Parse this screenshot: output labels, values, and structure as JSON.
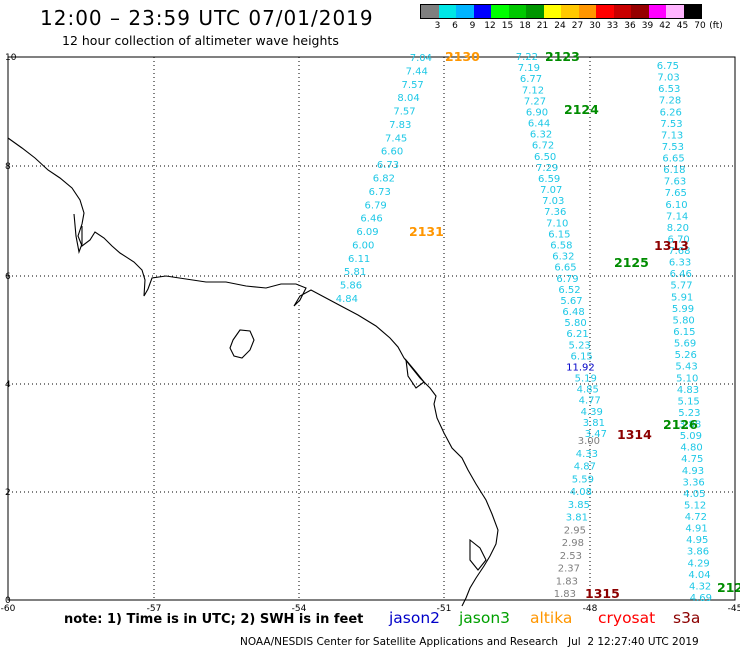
{
  "header": {
    "title": "12:00 – 23:59 UTC 07/01/2019",
    "subtitle": "12 hour collection of altimeter wave heights"
  },
  "scale": {
    "unit": "(ft)",
    "labels": [
      "3",
      "6",
      "9",
      "12",
      "15",
      "18",
      "21",
      "24",
      "27",
      "30",
      "33",
      "36",
      "39",
      "42",
      "45",
      "70"
    ],
    "colors": [
      "#7f7f7f",
      "#00e6e6",
      "#00b4ff",
      "#0000ff",
      "#00ff00",
      "#00c800",
      "#009600",
      "#ffff00",
      "#ffc800",
      "#ff9600",
      "#ff0000",
      "#c80000",
      "#960000",
      "#ff00ff",
      "#ffb4ff",
      "#000000"
    ]
  },
  "axes": {
    "lon_labels": [
      "-60",
      "-57",
      "-54",
      "-51",
      "-48",
      "-45"
    ],
    "lat_labels": [
      "10",
      "8",
      "6",
      "4",
      "2",
      "0"
    ]
  },
  "colors": {
    "cyan": "#1ec8e6",
    "gray": "#7f7f7f",
    "navy": "#0000c8",
    "green": "#008c00",
    "orange": "#ff9600",
    "maroon": "#8c0000"
  },
  "tracks": [
    {
      "pass": "2130",
      "pass_color": "#ff9600",
      "values": [
        "7.04",
        "7.44",
        "7.57",
        "8.04",
        "7.57",
        "7.83",
        "7.45",
        "6.60",
        "6.73",
        "6.82",
        "6.73",
        "6.79",
        "6.46",
        "6.09",
        "6.00",
        "6.11",
        "5.81",
        "5.86",
        "4.84"
      ]
    },
    {
      "pass": "2131",
      "pass_color": "#ff9600"
    },
    {
      "pass": "2123",
      "pass_color": "#008c00",
      "values": [
        "7.22",
        "7.19",
        "6.77",
        "7.12",
        "7.27",
        "6.90",
        "6.44",
        "6.32",
        "6.72",
        "6.50",
        "7.29",
        "6.59",
        "7.07",
        "7.03",
        "7.36",
        "7.10",
        "6.15",
        "6.58",
        "6.32",
        "6.65",
        "6.79",
        "6.52",
        "5.67",
        "6.48",
        "5.80",
        "6.21",
        "5.23",
        "6.15",
        "11.92",
        "5.19",
        "4.85",
        "4.77",
        "4.39",
        "3.81",
        "3.47"
      ]
    },
    {
      "pass": "2124",
      "pass_color": "#008c00"
    },
    {
      "pass": "2125",
      "pass_color": "#008c00",
      "values": [
        "6.75",
        "7.03",
        "6.53",
        "7.28",
        "6.26",
        "7.53",
        "7.13",
        "7.53",
        "6.65",
        "6.18",
        "7.63",
        "7.65",
        "6.10",
        "7.14",
        "8.20",
        "6.70",
        "7.68",
        "6.33",
        "6.46",
        "5.77",
        "5.91",
        "5.99",
        "5.80",
        "6.15",
        "5.69",
        "5.26",
        "5.43",
        "5.10",
        "4.83",
        "5.15",
        "5.23",
        "3.88",
        "5.09",
        "4.80",
        "4.75",
        "4.93",
        "3.36",
        "4.05",
        "5.12",
        "4.72",
        "4.91",
        "4.95",
        "3.86",
        "4.29",
        "4.04",
        "4.32",
        "4.69"
      ]
    },
    {
      "pass": "2126",
      "pass_color": "#008c00"
    },
    {
      "pass": "212",
      "pass_color": "#008c00"
    },
    {
      "pass": "1313",
      "pass_color": "#8c0000"
    },
    {
      "pass": "1314",
      "pass_color": "#8c0000",
      "values": [
        "3.00",
        "4.33",
        "4.87",
        "5.59",
        "4.08",
        "3.85",
        "3.81",
        "2.95",
        "2.98",
        "2.53",
        "2.37",
        "1.83",
        "1.83"
      ]
    },
    {
      "pass": "1315",
      "pass_color": "#8c0000"
    }
  ],
  "footer": {
    "note": "note: 1) Time is in UTC; 2) SWH is in feet",
    "satellites": [
      {
        "name": "jason2",
        "color": "#0000c8"
      },
      {
        "name": "jason3",
        "color": "#00a000"
      },
      {
        "name": "altika",
        "color": "#ff9600"
      },
      {
        "name": "cryosat",
        "color": "#ff0000"
      },
      {
        "name": "s3a",
        "color": "#8c0000"
      }
    ],
    "credit": "NOAA/NESDIS Center for Satellite Applications and Research   Jul  2 12:27:40 UTC 2019"
  }
}
